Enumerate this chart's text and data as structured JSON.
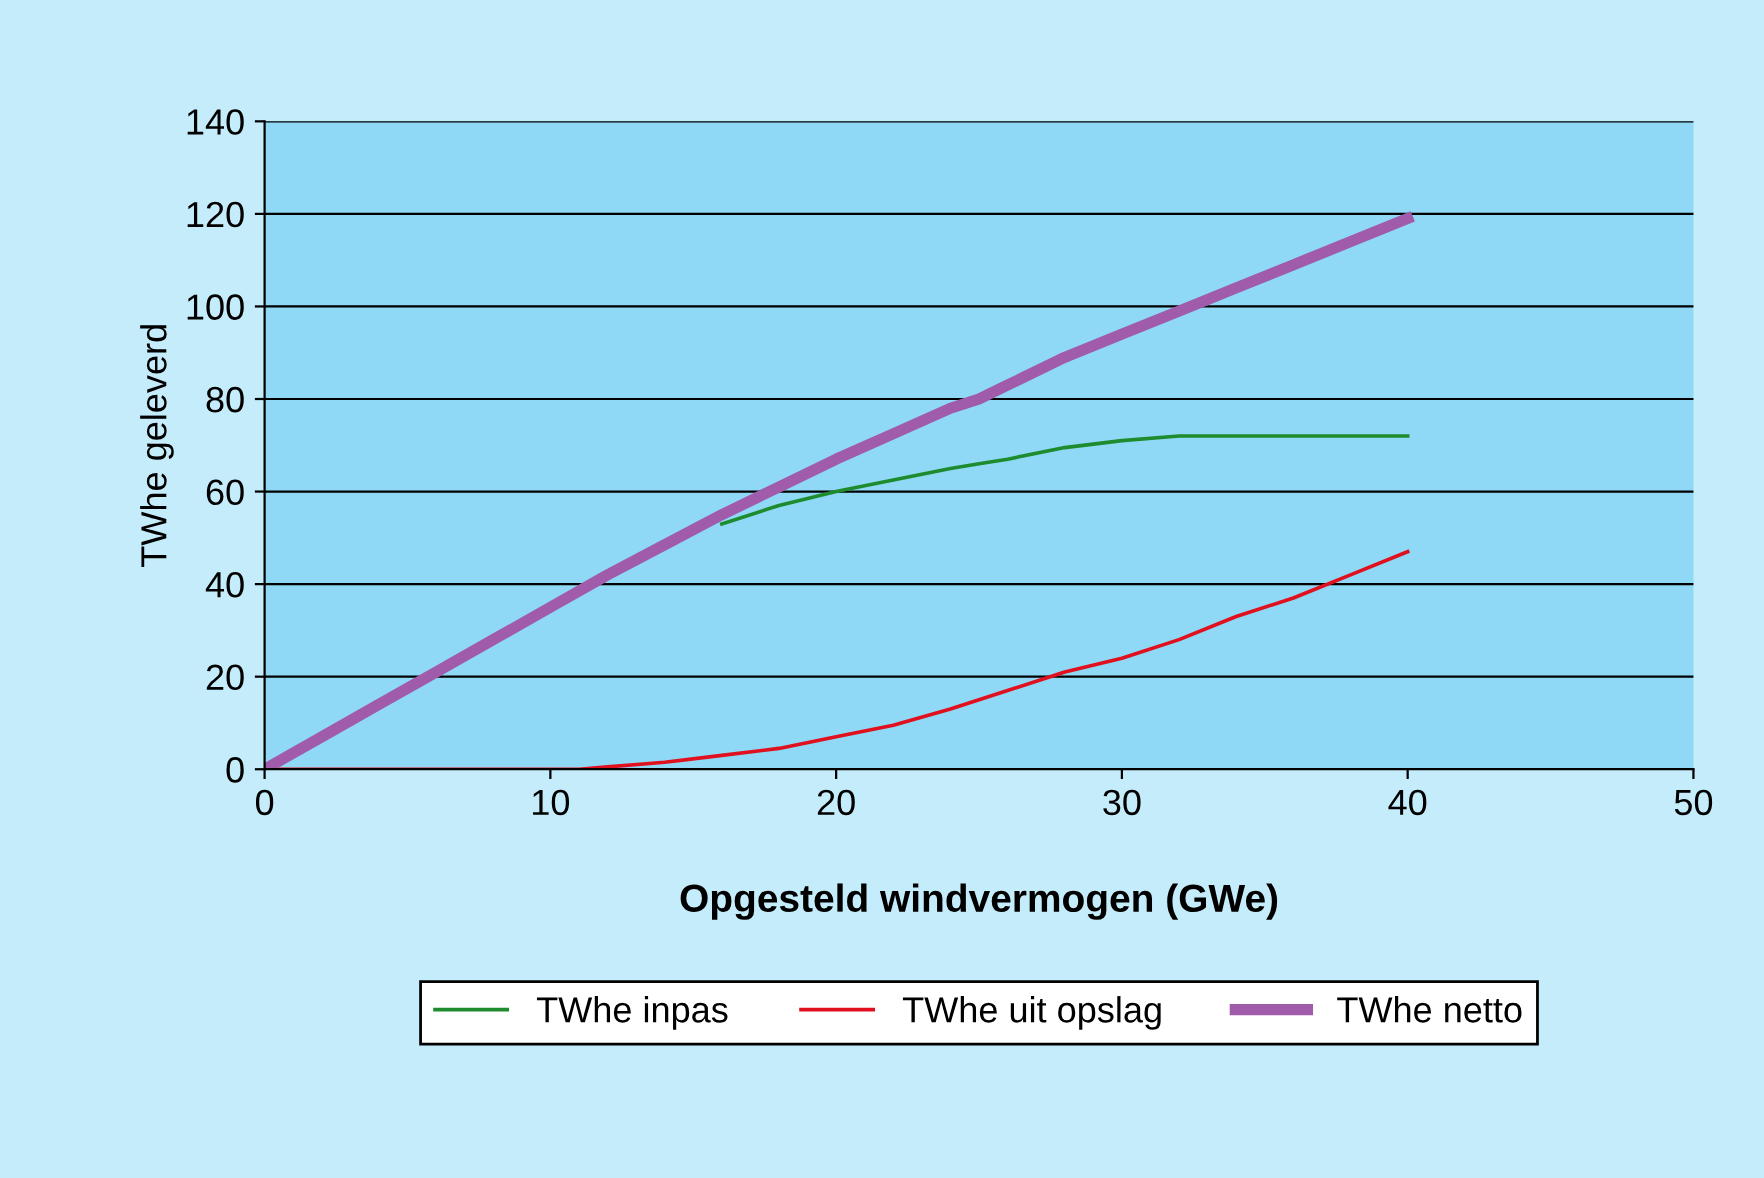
{
  "chart_data": {
    "type": "line",
    "xlabel": "Opgesteld windvermogen (GWe)",
    "ylabel": "TWhe geleverd",
    "xlim": [
      0,
      50
    ],
    "xticks": [
      0,
      10,
      20,
      30,
      40,
      50
    ],
    "ylim": [
      0,
      140
    ],
    "yticks": [
      0,
      20,
      40,
      60,
      80,
      100,
      120,
      140
    ],
    "grid": "y",
    "legend": "bottom",
    "marker": "none",
    "line_style": "solid",
    "series": [
      {
        "name": "TWhe inpas",
        "color": "#1e8c2e",
        "x": [
          16,
          18,
          20,
          22,
          24,
          25,
          26,
          28,
          30,
          32,
          34,
          36,
          38,
          40
        ],
        "values": [
          53,
          57,
          60,
          62.5,
          65,
          66,
          67,
          69.5,
          71,
          72,
          72,
          72,
          72,
          72
        ]
      },
      {
        "name": "TWhe uit opslag",
        "color": "#e0101e",
        "x": [
          0,
          5,
          10,
          11,
          12,
          14,
          16,
          18,
          20,
          22,
          24,
          25,
          26,
          28,
          30,
          32,
          34,
          36,
          38,
          40
        ],
        "values": [
          0,
          0,
          0,
          0,
          0.5,
          1.5,
          3,
          4.5,
          7,
          9.5,
          13,
          15,
          17,
          21,
          24,
          28,
          33,
          37,
          42,
          47
        ]
      },
      {
        "name": "TWhe netto",
        "color": "#a05cab",
        "x": [
          0,
          2,
          4,
          6,
          8,
          10,
          12,
          14,
          16,
          18,
          20,
          22,
          24,
          25,
          26,
          28,
          30,
          32,
          34,
          36,
          38,
          40
        ],
        "values": [
          0,
          7,
          14,
          21,
          28,
          35,
          42,
          48.5,
          55,
          61,
          67,
          72.5,
          78,
          80,
          83,
          89,
          94,
          99,
          104,
          109,
          114,
          119
        ]
      }
    ]
  }
}
